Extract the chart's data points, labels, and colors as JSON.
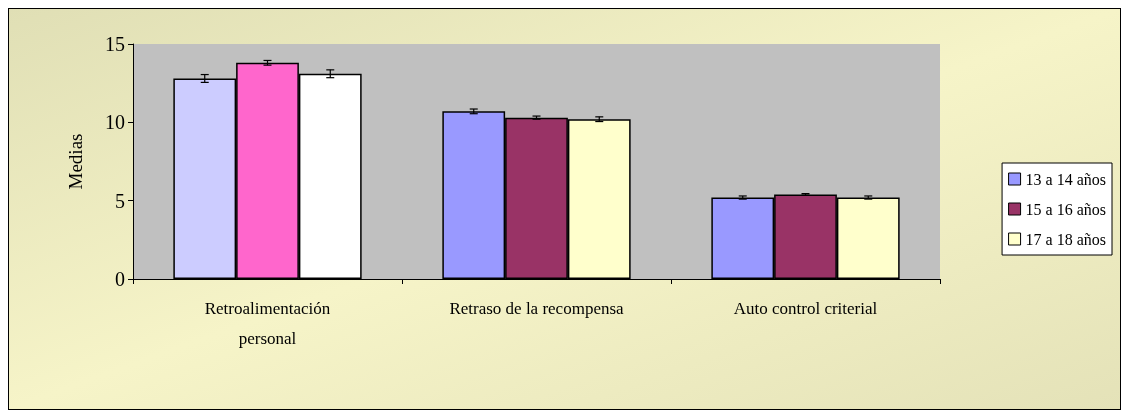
{
  "chart_data": {
    "type": "bar",
    "ylabel": "Medias",
    "categories": [
      "Retroalimentación\npersonal",
      "Retraso de la recompensa",
      "Auto control criterial"
    ],
    "series": [
      {
        "name": "13 a 14 años",
        "color": "#9999ff",
        "colors": [
          "#ccccff",
          "#9999ff",
          "#9999ff"
        ],
        "values": [
          12.8,
          10.7,
          5.2
        ],
        "errors": [
          0.25,
          0.15,
          0.1
        ]
      },
      {
        "name": "15 a 16 años",
        "color": "#993366",
        "colors": [
          "#ff66cc",
          "#993366",
          "#993366"
        ],
        "values": [
          13.8,
          10.3,
          5.4
        ],
        "errors": [
          0.15,
          0.1,
          0.05
        ]
      },
      {
        "name": "17 a 18 años",
        "color": "#ffffcc",
        "colors": [
          "#ffffff",
          "#ffffcc",
          "#ffffcc"
        ],
        "values": [
          13.1,
          10.2,
          5.2
        ],
        "errors": [
          0.25,
          0.15,
          0.1
        ]
      }
    ],
    "ylim": [
      0,
      15
    ],
    "yticks": [
      0,
      5,
      10,
      15
    ],
    "grid": false,
    "legend": "right"
  }
}
